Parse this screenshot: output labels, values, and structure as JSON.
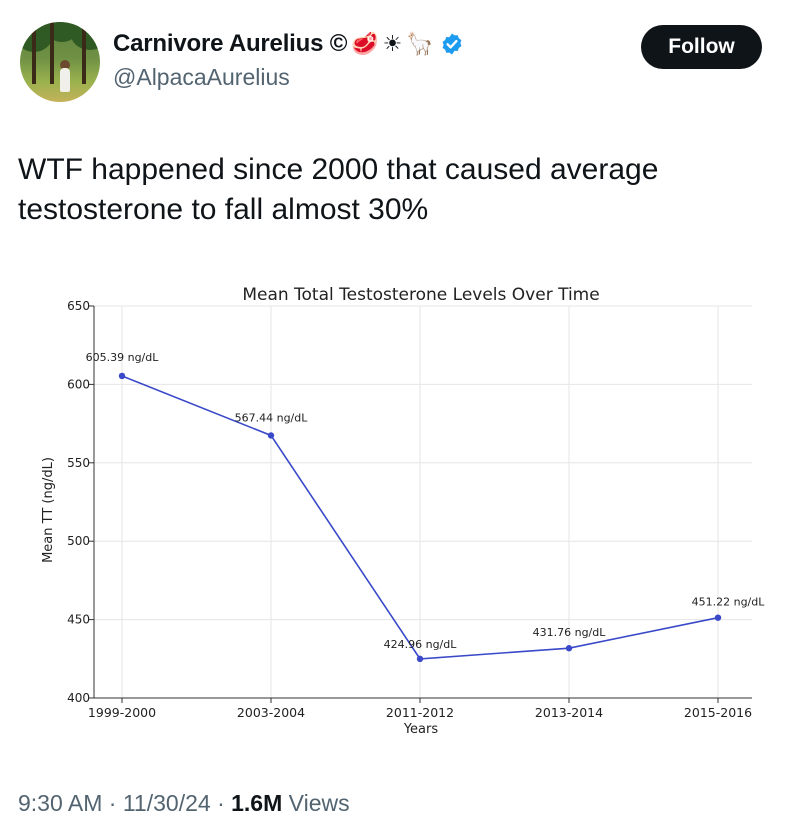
{
  "author": {
    "display_name": "Carnivore Aurelius ©",
    "emojis": [
      "🥩",
      "☀",
      "🦙"
    ],
    "handle": "@AlpacaAurelius"
  },
  "follow_label": "Follow",
  "tweet_text": "WTF happened since 2000 that caused average testosterone to fall almost 30%",
  "meta": {
    "time": "9:30 AM",
    "date": "11/30/24",
    "views_count": "1.6M",
    "views_label": "Views",
    "separator": "·"
  },
  "colors": {
    "line": "#3a49c9",
    "badge": "#1d9bf0"
  },
  "chart_data": {
    "type": "line",
    "title": "Mean Total Testosterone Levels Over Time",
    "xlabel": "Years",
    "ylabel": "Mean TT (ng/dL)",
    "categories": [
      "1999-2000",
      "2003-2004",
      "2011-2012",
      "2013-2014",
      "2015-2016"
    ],
    "values": [
      605.39,
      567.44,
      424.96,
      431.76,
      451.22
    ],
    "data_labels": [
      "605.39 ng/dL",
      "567.44 ng/dL",
      "424.96 ng/dL",
      "431.76 ng/dL",
      "451.22 ng/dL"
    ],
    "ylim": [
      400,
      650
    ],
    "yticks": [
      400,
      450,
      500,
      550,
      600,
      650
    ],
    "grid": true
  }
}
